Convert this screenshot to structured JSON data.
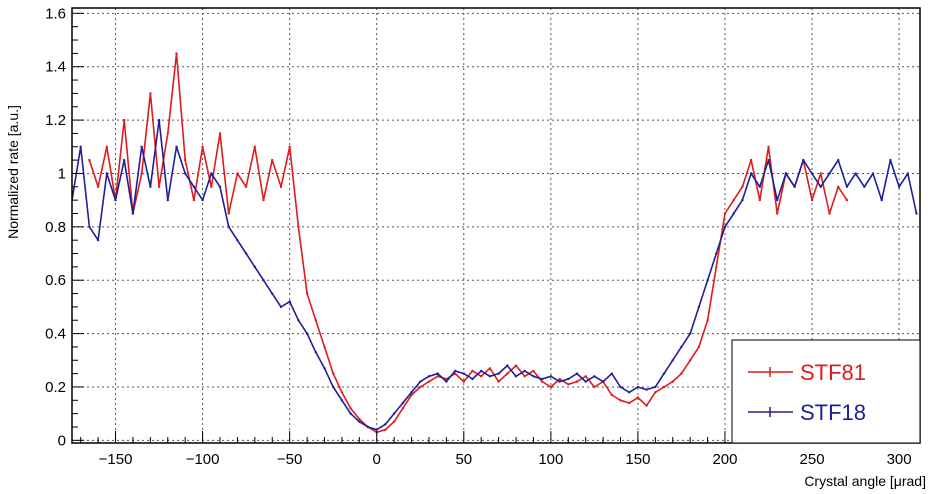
{
  "chart_data": {
    "type": "line",
    "title": "",
    "xlabel": "Crystal angle [μrad]",
    "ylabel": "Normalized rate [a.u.]",
    "xlim": [
      -175,
      312
    ],
    "ylim": [
      -0.01,
      1.62
    ],
    "grid": true,
    "legend_position": "bottom-right",
    "x_ticks": [
      -150,
      -100,
      -50,
      0,
      50,
      100,
      150,
      200,
      250,
      300
    ],
    "x_tick_labels": [
      "−150",
      "−100",
      "−50",
      "0",
      "50",
      "100",
      "150",
      "200",
      "250",
      "300"
    ],
    "y_ticks": [
      0,
      0.2,
      0.4,
      0.6,
      0.8,
      1.0,
      1.2,
      1.4,
      1.6
    ],
    "y_tick_labels": [
      "0",
      "0.2",
      "0.4",
      "0.6",
      "0.8",
      "1",
      "1.2",
      "1.4",
      "1.6"
    ],
    "series": [
      {
        "name": "STF81",
        "color": "#dd1c1c",
        "x": [
          -165,
          -160,
          -155,
          -150,
          -145,
          -140,
          -135,
          -130,
          -125,
          -120,
          -115,
          -110,
          -105,
          -100,
          -95,
          -90,
          -85,
          -80,
          -75,
          -70,
          -65,
          -60,
          -55,
          -50,
          -45,
          -40,
          -35,
          -30,
          -25,
          -20,
          -15,
          -10,
          -5,
          0,
          5,
          10,
          15,
          20,
          25,
          30,
          35,
          40,
          45,
          50,
          55,
          60,
          65,
          70,
          75,
          80,
          85,
          90,
          95,
          100,
          105,
          110,
          115,
          120,
          125,
          130,
          135,
          140,
          145,
          150,
          155,
          160,
          165,
          170,
          175,
          180,
          185,
          190,
          195,
          200,
          205,
          210,
          215,
          220,
          225,
          230,
          235,
          240,
          245,
          250,
          255,
          260,
          265,
          270
        ],
        "y": [
          1.05,
          0.95,
          1.1,
          0.9,
          1.2,
          0.85,
          1.0,
          1.3,
          0.95,
          1.15,
          1.45,
          1.05,
          0.9,
          1.1,
          0.95,
          1.15,
          0.85,
          1.0,
          0.95,
          1.1,
          0.9,
          1.05,
          0.95,
          1.1,
          0.8,
          0.55,
          0.45,
          0.35,
          0.25,
          0.18,
          0.12,
          0.08,
          0.05,
          0.03,
          0.04,
          0.07,
          0.12,
          0.17,
          0.2,
          0.22,
          0.24,
          0.23,
          0.25,
          0.22,
          0.26,
          0.24,
          0.27,
          0.22,
          0.25,
          0.28,
          0.24,
          0.26,
          0.22,
          0.2,
          0.23,
          0.21,
          0.22,
          0.24,
          0.2,
          0.22,
          0.17,
          0.15,
          0.14,
          0.16,
          0.13,
          0.18,
          0.2,
          0.22,
          0.25,
          0.3,
          0.35,
          0.45,
          0.65,
          0.85,
          0.9,
          0.95,
          1.05,
          0.9,
          1.1,
          0.85,
          1.0,
          0.95,
          1.05,
          0.9,
          1.0,
          0.85,
          0.95,
          0.9
        ]
      },
      {
        "name": "STF18",
        "color": "#1f1f99",
        "x": [
          -175,
          -170,
          -165,
          -160,
          -155,
          -150,
          -145,
          -140,
          -135,
          -130,
          -125,
          -120,
          -115,
          -110,
          -105,
          -100,
          -95,
          -90,
          -85,
          -80,
          -75,
          -70,
          -65,
          -60,
          -55,
          -50,
          -45,
          -40,
          -35,
          -30,
          -25,
          -20,
          -15,
          -10,
          -5,
          0,
          5,
          10,
          15,
          20,
          25,
          30,
          35,
          40,
          45,
          50,
          55,
          60,
          65,
          70,
          75,
          80,
          85,
          90,
          95,
          100,
          105,
          110,
          115,
          120,
          125,
          130,
          135,
          140,
          145,
          150,
          155,
          160,
          165,
          170,
          175,
          180,
          185,
          190,
          195,
          200,
          205,
          210,
          215,
          220,
          225,
          230,
          235,
          240,
          245,
          250,
          255,
          260,
          265,
          270,
          275,
          280,
          285,
          290,
          295,
          300,
          305,
          310
        ],
        "y": [
          0.9,
          1.1,
          0.8,
          0.75,
          1.0,
          0.9,
          1.05,
          0.85,
          1.1,
          0.95,
          1.2,
          0.9,
          1.1,
          1.0,
          0.95,
          0.9,
          1.0,
          0.95,
          0.8,
          0.75,
          0.7,
          0.65,
          0.6,
          0.55,
          0.5,
          0.52,
          0.45,
          0.4,
          0.33,
          0.27,
          0.2,
          0.15,
          0.1,
          0.07,
          0.05,
          0.04,
          0.06,
          0.1,
          0.14,
          0.18,
          0.22,
          0.24,
          0.25,
          0.22,
          0.26,
          0.25,
          0.23,
          0.26,
          0.24,
          0.25,
          0.28,
          0.24,
          0.26,
          0.24,
          0.23,
          0.24,
          0.22,
          0.23,
          0.25,
          0.22,
          0.24,
          0.22,
          0.25,
          0.2,
          0.18,
          0.2,
          0.19,
          0.2,
          0.25,
          0.3,
          0.35,
          0.4,
          0.5,
          0.6,
          0.7,
          0.8,
          0.85,
          0.9,
          1.0,
          0.95,
          1.05,
          0.9,
          1.0,
          0.95,
          1.05,
          1.0,
          0.95,
          1.0,
          1.05,
          0.95,
          1.0,
          0.95,
          1.0,
          0.9,
          1.05,
          0.95,
          1.0,
          0.85
        ]
      }
    ]
  }
}
